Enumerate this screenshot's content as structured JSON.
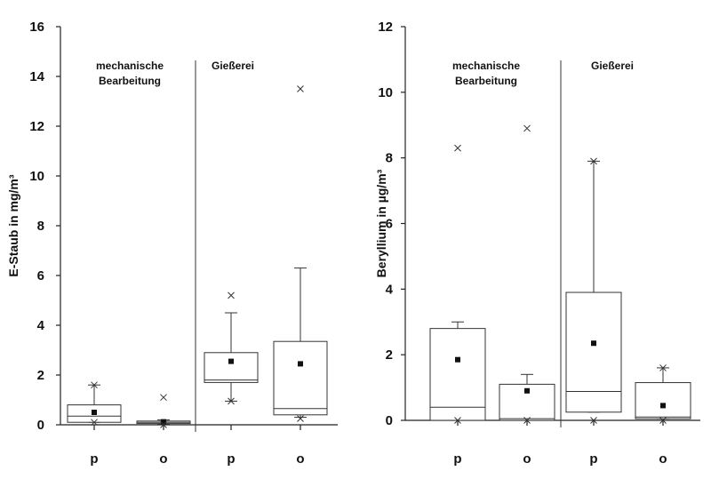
{
  "chart_data": [
    {
      "type": "box",
      "ylabel": "E-Staub in mg/m³",
      "ylim": [
        0,
        16
      ],
      "yticks": [
        "0",
        "2",
        "4",
        "6",
        "8",
        "10",
        "12",
        "14",
        "16"
      ],
      "group_labels": [
        {
          "lines": [
            "mechanische",
            "Bearbeitung"
          ]
        },
        {
          "lines": [
            "Gießerei"
          ]
        }
      ],
      "categories": [
        "p",
        "o",
        "p",
        "o"
      ],
      "boxes": [
        {
          "group": "mechanische Bearbeitung",
          "category": "p",
          "whisker_low": 0.1,
          "q1": 0.1,
          "median": 0.35,
          "q3": 0.8,
          "whisker_high": 1.6,
          "mean": 0.5,
          "extremes": [
            0.1,
            1.6
          ]
        },
        {
          "group": "mechanische Bearbeitung",
          "category": "o",
          "whisker_low": 0.02,
          "q1": 0.05,
          "median": 0.1,
          "q3": 0.15,
          "whisker_high": 0.2,
          "mean": 0.12,
          "extremes": [
            0.0,
            1.1
          ]
        },
        {
          "group": "Gießerei",
          "category": "p",
          "whisker_low": 0.95,
          "q1": 1.7,
          "median": 1.8,
          "q3": 2.9,
          "whisker_high": 4.5,
          "mean": 2.55,
          "extremes": [
            0.95,
            5.2
          ]
        },
        {
          "group": "Gießerei",
          "category": "o",
          "whisker_low": 0.3,
          "q1": 0.4,
          "median": 0.65,
          "q3": 3.35,
          "whisker_high": 6.3,
          "mean": 2.45,
          "extremes": [
            0.25,
            13.5
          ]
        }
      ]
    },
    {
      "type": "box",
      "ylabel": "Beryllium in µg/m³",
      "ylim": [
        0,
        12
      ],
      "yticks": [
        "0",
        "2",
        "4",
        "6",
        "8",
        "10",
        "12"
      ],
      "group_labels": [
        {
          "lines": [
            "mechanische",
            "Bearbeitung"
          ]
        },
        {
          "lines": [
            "Gießerei"
          ]
        }
      ],
      "categories": [
        "p",
        "o",
        "p",
        "o"
      ],
      "boxes": [
        {
          "group": "mechanische Bearbeitung",
          "category": "p",
          "whisker_low": 0.0,
          "q1": 0.0,
          "median": 0.4,
          "q3": 2.8,
          "whisker_high": 3.0,
          "mean": 1.85,
          "extremes": [
            0.0,
            8.3
          ]
        },
        {
          "group": "mechanische Bearbeitung",
          "category": "o",
          "whisker_low": 0.0,
          "q1": 0.0,
          "median": 0.05,
          "q3": 1.1,
          "whisker_high": 1.4,
          "mean": 0.9,
          "extremes": [
            0.0,
            8.9
          ]
        },
        {
          "group": "Gießerei",
          "category": "p",
          "whisker_low": 0.25,
          "q1": 0.25,
          "median": 0.88,
          "q3": 3.9,
          "whisker_high": 7.9,
          "mean": 2.35,
          "extremes": [
            0.0,
            7.9
          ]
        },
        {
          "group": "Gießerei",
          "category": "o",
          "whisker_low": 0.05,
          "q1": 0.05,
          "median": 0.1,
          "q3": 1.15,
          "whisker_high": 1.6,
          "mean": 0.45,
          "extremes": [
            0.0,
            1.6
          ]
        }
      ]
    }
  ]
}
